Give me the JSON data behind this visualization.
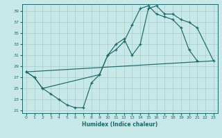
{
  "xlabel": "Humidex (Indice chaleur)",
  "bg_color": "#c8e8e8",
  "grid_color": "#a8cccc",
  "line_color": "#1a6868",
  "xlim": [
    -0.5,
    23.5
  ],
  "ylim": [
    20.5,
    40.3
  ],
  "xticks": [
    0,
    1,
    2,
    3,
    4,
    5,
    6,
    7,
    8,
    9,
    10,
    11,
    12,
    13,
    14,
    15,
    16,
    17,
    18,
    19,
    20,
    21,
    22,
    23
  ],
  "yticks": [
    21,
    23,
    25,
    27,
    29,
    31,
    33,
    35,
    37,
    39
  ],
  "s0x": [
    0,
    1,
    2,
    3,
    4,
    5,
    6,
    7,
    8,
    9,
    10,
    11,
    12,
    13,
    14,
    15,
    16,
    17,
    18,
    19,
    20,
    21
  ],
  "s0y": [
    28,
    27,
    25,
    24,
    23,
    22,
    21.5,
    21.5,
    26,
    27.5,
    31,
    32,
    33.5,
    36.5,
    39.5,
    40,
    38.5,
    38,
    37.5,
    36,
    32,
    30
  ],
  "s1x": [
    0,
    1,
    2,
    9,
    10,
    11,
    12,
    13,
    14,
    15,
    16,
    17,
    18,
    19,
    20,
    21,
    23
  ],
  "s1y": [
    28,
    27,
    25,
    27.5,
    31,
    33,
    34,
    31,
    33,
    39.5,
    40,
    38.5,
    38.5,
    37.5,
    37,
    36,
    30
  ],
  "s2x": [
    0,
    23
  ],
  "s2y": [
    28,
    30
  ]
}
